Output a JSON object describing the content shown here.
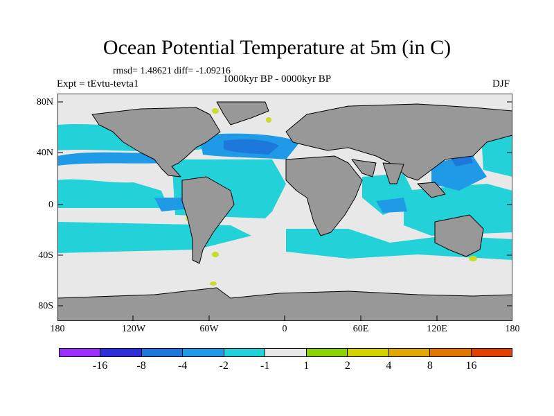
{
  "title": "Ocean Potential Temperature at 5m (in C)",
  "stats": "rmsd= 1.48621 diff= -1.09216",
  "experiment": "Expt = tEvtu-tevta1",
  "period": "1000kyr BP - 0000kyr BP",
  "season": "DJF",
  "colors": {
    "land": "#989898",
    "ocean_near_zero": "#e8e8e8",
    "coastline": "#000000"
  },
  "y_ticks": [
    "80N",
    "40N",
    "0",
    "40S",
    "80S"
  ],
  "x_ticks": [
    "180",
    "120W",
    "60W",
    "0",
    "60E",
    "120E",
    "180"
  ],
  "colorbar": {
    "colors": [
      "#9b30ff",
      "#2f2fd9",
      "#1e78dc",
      "#1e9ae6",
      "#22d2d8",
      "#e8e8e8",
      "#8cd200",
      "#d2d200",
      "#e0a800",
      "#e07800",
      "#e04000"
    ],
    "labels": [
      "-16",
      "-8",
      "-4",
      "-2",
      "-1",
      "1",
      "2",
      "4",
      "8",
      "16"
    ]
  }
}
